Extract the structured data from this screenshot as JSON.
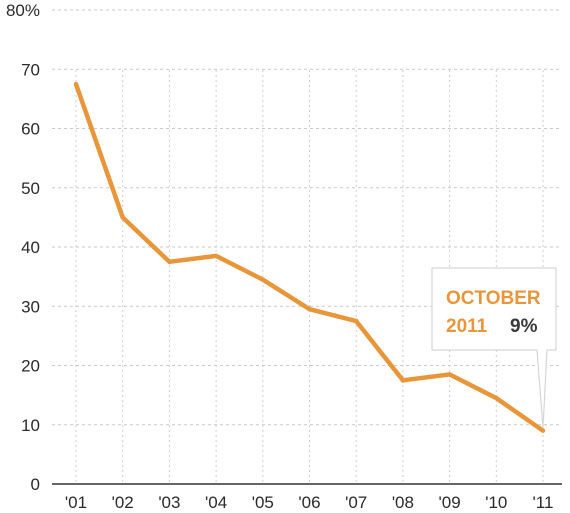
{
  "chart_data": {
    "type": "line",
    "categories": [
      "'01",
      "'02",
      "'03",
      "'04",
      "'05",
      "'06",
      "'07",
      "'08",
      "'09",
      "'10",
      "'11"
    ],
    "series": [
      {
        "values": [
          67.5,
          45,
          37.5,
          38.5,
          34.5,
          29.5,
          27.5,
          17.5,
          18.5,
          14.5,
          9
        ]
      }
    ],
    "ylim": [
      0,
      80
    ],
    "yticks": [
      0,
      10,
      20,
      30,
      40,
      50,
      60,
      70,
      80
    ],
    "ytick_labels": [
      "0",
      "10",
      "20",
      "30",
      "40",
      "50",
      "60",
      "70",
      "80%"
    ],
    "grid": true,
    "colors": {
      "line": "#e8963a",
      "callout_text": "#e8963a",
      "callout_value": "#3a3a3a"
    },
    "callout": {
      "line1": "OCTOBER",
      "line2": "2011",
      "value": "9%",
      "points_to_category": "'11"
    }
  }
}
